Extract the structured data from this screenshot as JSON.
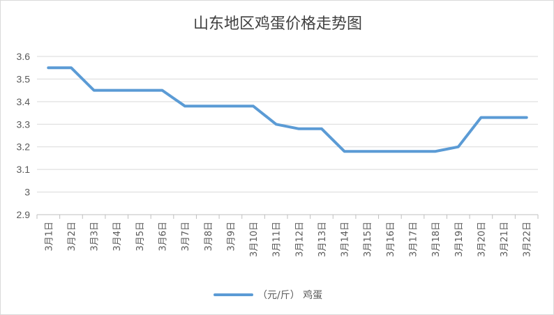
{
  "chart_data": {
    "type": "line",
    "title": "山东地区鸡蛋价格走势图",
    "xlabel": "",
    "ylabel": "",
    "categories": [
      "3月1日",
      "3月2日",
      "3月3日",
      "3月4日",
      "3月5日",
      "3月6日",
      "3月7日",
      "3月8日",
      "3月9日",
      "3月10日",
      "3月11日",
      "3月12日",
      "3月13日",
      "3月14日",
      "3月15日",
      "3月16日",
      "3月17日",
      "3月18日",
      "3月19日",
      "3月20日",
      "3月21日",
      "3月22日"
    ],
    "series": [
      {
        "name": "（元/斤） 鸡蛋",
        "values": [
          3.55,
          3.55,
          3.45,
          3.45,
          3.45,
          3.45,
          3.38,
          3.38,
          3.38,
          3.38,
          3.3,
          3.28,
          3.28,
          3.18,
          3.18,
          3.18,
          3.18,
          3.18,
          3.2,
          3.33,
          3.33,
          3.33
        ]
      }
    ],
    "ylim": [
      2.9,
      3.6
    ],
    "yticks": [
      "3.6",
      "3.5",
      "3.4",
      "3.3",
      "3.2",
      "3.1",
      "3",
      "2.9"
    ],
    "grid": true,
    "legend_position": "bottom",
    "colors": {
      "line": "#5b9bd5",
      "grid": "#d9d9d9",
      "axis": "#bfbfbf"
    }
  }
}
